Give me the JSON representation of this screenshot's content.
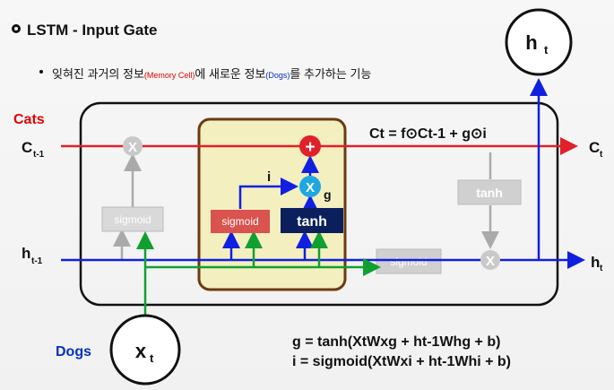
{
  "header": {
    "title": "LSTM - Input Gate",
    "subtitle_a": "잊혀진 과거의 정보",
    "subtitle_mem": "(Memory Cell)",
    "subtitle_b": "에 새로운 정보",
    "subtitle_dogs": "(Dogs)",
    "subtitle_c": "를 추가하는 기능"
  },
  "diagram": {
    "cats_label": "Cats",
    "dogs_label": "Dogs",
    "c_prev": "C",
    "c_prev_sub": "t-1",
    "h_prev": "h",
    "h_prev_sub": "t-1",
    "c_out": "C",
    "c_out_sub": "t",
    "h_out": "h",
    "h_out_sub": "t",
    "ht_circle": "h",
    "ht_circle_sub": "t",
    "xt_circle": "x",
    "xt_circle_sub": "t",
    "sigmoid_label": "sigmoid",
    "tanh_label": "tanh",
    "i_label": "i",
    "g_label": "g",
    "mult_sym": "X",
    "plus_sym": "+"
  },
  "equations": {
    "cell": "Ct = f⊙Ct-1 + g⊙i",
    "g_eq": "g = tanh(XtWxg + ht-1Whg + b)",
    "i_eq": "i = sigmoid(XtWxi + ht-1Whi + b)"
  },
  "colors": {
    "red_line": "#e0202a",
    "blue_line": "#1020e0",
    "green_line": "#10a030",
    "gate_box": "#f3efbf",
    "gate_border": "#6b3a12",
    "sigmoid_red": "#d9534f",
    "tanh_navy": "#0b1f5c",
    "circle_cyan": "#1ea7e1"
  }
}
